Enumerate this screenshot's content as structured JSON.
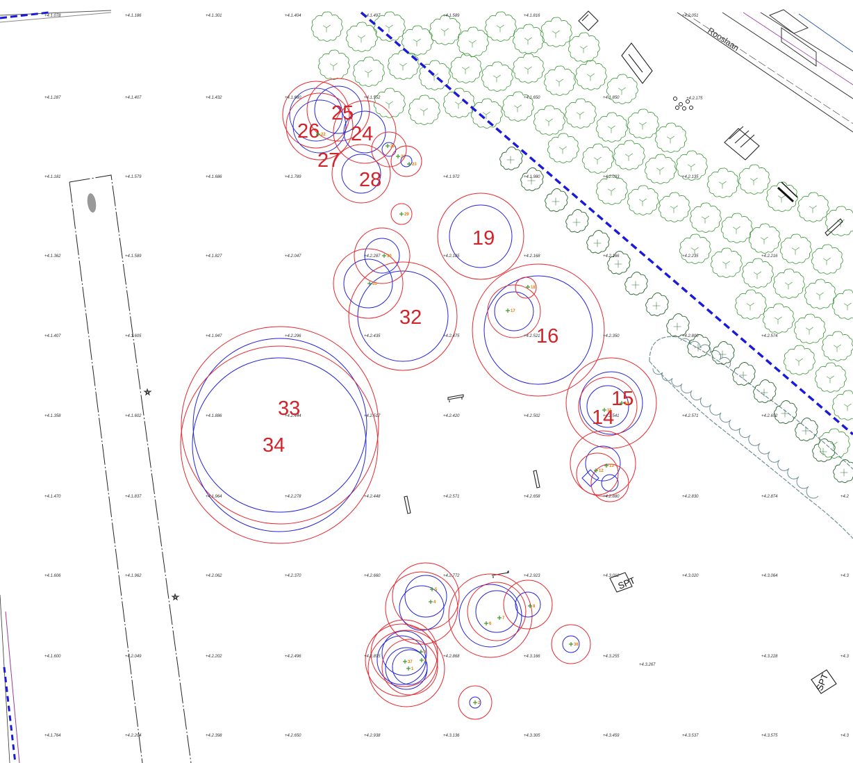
{
  "map": {
    "street_name": "Roos­laan",
    "spt_label": "SPT",
    "elevation_label_rows": [
      [
        "+4.1.078",
        "+4.1.186",
        "+4.1.301",
        "+4.1.404",
        "+4.1.497",
        "+4.1.589",
        "+4.1.816",
        "",
        "+4.2.051",
        "",
        ""
      ],
      [
        "+4.1.287",
        "+4.1.407",
        "+4.1.432",
        "+4.1.680",
        "+4.1.552",
        "",
        "+4.1.650",
        "+4.1.850",
        "",
        "",
        ""
      ],
      [
        "+4.1.181",
        "+4.1.579",
        "+4.1.686",
        "+4.1.789",
        "",
        "+4.1.972",
        "+4.1.980",
        "+4.2.023",
        "+4.2.135",
        "",
        ""
      ],
      [
        "+4.1.362",
        "+4.1.589",
        "+4.1.827",
        "+4.2.047",
        "+4.2.287",
        "+4.2.185",
        "+4.2.168",
        "+4.2.166",
        "+4.2.235",
        "+4.2.216",
        ""
      ],
      [
        "+4.1.407",
        "+4.1.605",
        "+4.1.947",
        "+4.2.296",
        "+4.2.435",
        "+4.2.475",
        "+4.2.521",
        "+4.2.350",
        "+4.2.800",
        "+4.2.574",
        ""
      ],
      [
        "+4.1.358",
        "+4.1.602",
        "+4.1.886",
        "+4.2.444",
        "+4.2.517",
        "+4.2.420",
        "+4.2.502",
        "+4.2.541",
        "+4.2.571",
        "+4.2.652",
        ""
      ],
      [
        "+4.1.470",
        "+4.1.837",
        "+4.1.964",
        "+4.2.278",
        "+4.2.448",
        "+4.2.571",
        "+4.2.658",
        "+4.2.880",
        "+4.2.830",
        "+4.2.874",
        "+4.2"
      ],
      [
        "+4.1.606",
        "+4.1.962",
        "+4.2.062",
        "+4.2.370",
        "+4.2.660",
        "+4.2.772",
        "+4.2.923",
        "+4.3.012",
        "+4.3.020",
        "+4.3.064",
        "+4.3"
      ],
      [
        "+4.1.600",
        "+4.2.049",
        "+4.2.202",
        "+4.2.496",
        "+4.2.895",
        "+4.2.868",
        "+4.3.166",
        "+4.3.255",
        "",
        "+4.3.228",
        "+4.3"
      ],
      [
        "+4.1.764",
        "+4.2.204",
        "+4.2.398",
        "+4.2.650",
        "+4.2.938",
        "+4.3.136",
        "+4.3.305",
        "+4.3.459",
        "+4.3.537",
        "+4.3.575",
        "+4.3"
      ]
    ],
    "extra_elevation_labels": [
      "+4.2.175",
      "+4.3.267"
    ],
    "tree_labels": [
      {
        "id": "19",
        "label": "19"
      },
      {
        "id": "16",
        "label": "16"
      },
      {
        "id": "32",
        "label": "32"
      },
      {
        "id": "33",
        "label": "33"
      },
      {
        "id": "34",
        "label": "34"
      },
      {
        "id": "15",
        "label": "15"
      },
      {
        "id": "14",
        "label": "14"
      },
      {
        "id": "24",
        "label": "24"
      },
      {
        "id": "25",
        "label": "25"
      },
      {
        "id": "26",
        "label": "26"
      },
      {
        "id": "27",
        "label": "27"
      },
      {
        "id": "28",
        "label": "28"
      }
    ],
    "small_tree_numbers": [
      "29",
      "18",
      "17",
      "30",
      "31",
      "12",
      "13",
      "11",
      "10",
      "5",
      "4",
      "7",
      "6",
      "8",
      "9",
      "37",
      "3",
      "1",
      "36",
      "2",
      "22",
      "21",
      "23",
      "20"
    ],
    "colors": {
      "canopy_outer": "#e8262c",
      "canopy_inner": "#2222dd",
      "label": "#d2232a",
      "tree_symbol_light": "#3f9a3a",
      "tree_symbol_dark": "#2d6a32",
      "path_line": "#1a1ad8",
      "hedge": "#6e8f95",
      "cross_marker": "#3a9a2a",
      "number_orange": "#e27a00"
    }
  }
}
